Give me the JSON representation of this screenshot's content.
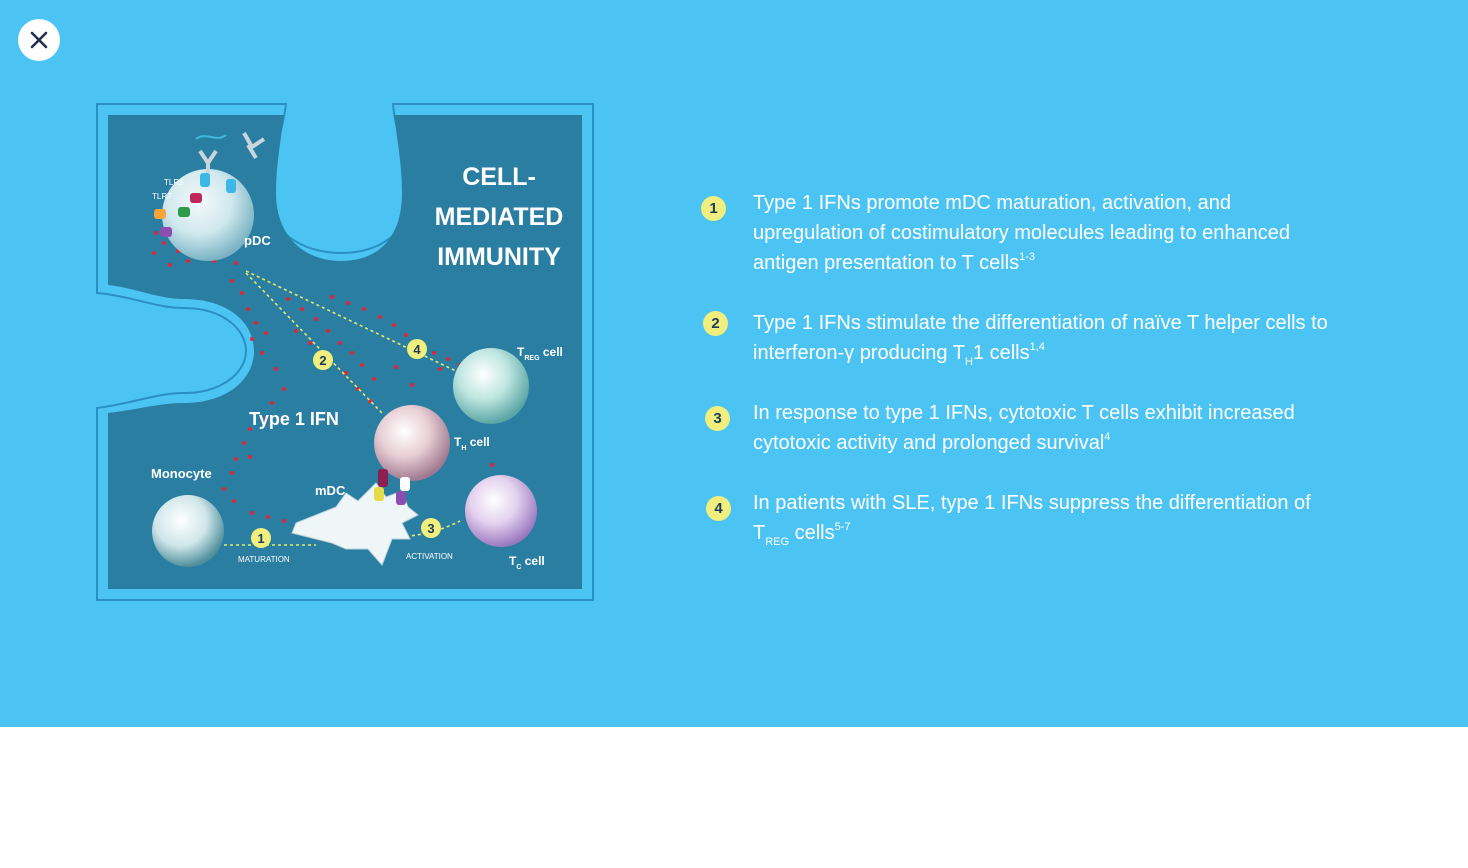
{
  "close": {
    "icon": "close-icon"
  },
  "diagram": {
    "title_lines": [
      "CELL-",
      "MEDIATED",
      "IMMUNITY"
    ],
    "ifn_label": "Type 1 IFN",
    "receptors": [
      "TLR9",
      "TLR7"
    ],
    "cells": {
      "pdc": "pDC",
      "monocyte": "Monocyte",
      "mdc": "mDC",
      "th_main": "T",
      "th_sub": "H",
      "th_rest": " cell",
      "treg_main": "T",
      "treg_sub": "REG",
      "treg_rest": " cell",
      "tc_main": "T",
      "tc_sub": "C",
      "tc_rest": " cell"
    },
    "steps": [
      "1",
      "2",
      "3",
      "4"
    ],
    "maturation": "MATURATION",
    "activation": "ACTIVATION",
    "colors": {
      "panel_bg": "#4cc4f3",
      "puzzle": "#2a7ea1",
      "marker": "#f0ef7e",
      "ifn_dot": "#e0273a"
    }
  },
  "list": {
    "items": [
      {
        "num": "1",
        "text": "Type 1 IFNs promote mDC maturation, activation, and upregulation of costimulatory molecules leading to enhanced antigen presentation to T cells",
        "sup": "1-3"
      },
      {
        "num": "2",
        "text_a": "Type 1 IFNs stimulate the differentiation of naïve T helper cells to interferon-γ producing T",
        "sub": "H",
        "text_b": "1 cells",
        "sup": "1,4"
      },
      {
        "num": "3",
        "text": "In response to type 1 IFNs, cytotoxic T cells exhibit increased cytotoxic activity and prolonged survival",
        "sup": "4"
      },
      {
        "num": "4",
        "text_a": "In patients with SLE, type 1 IFNs suppress the differentiation of T",
        "sub": "REG",
        "text_b": " cells",
        "sup": "5-7"
      }
    ]
  }
}
